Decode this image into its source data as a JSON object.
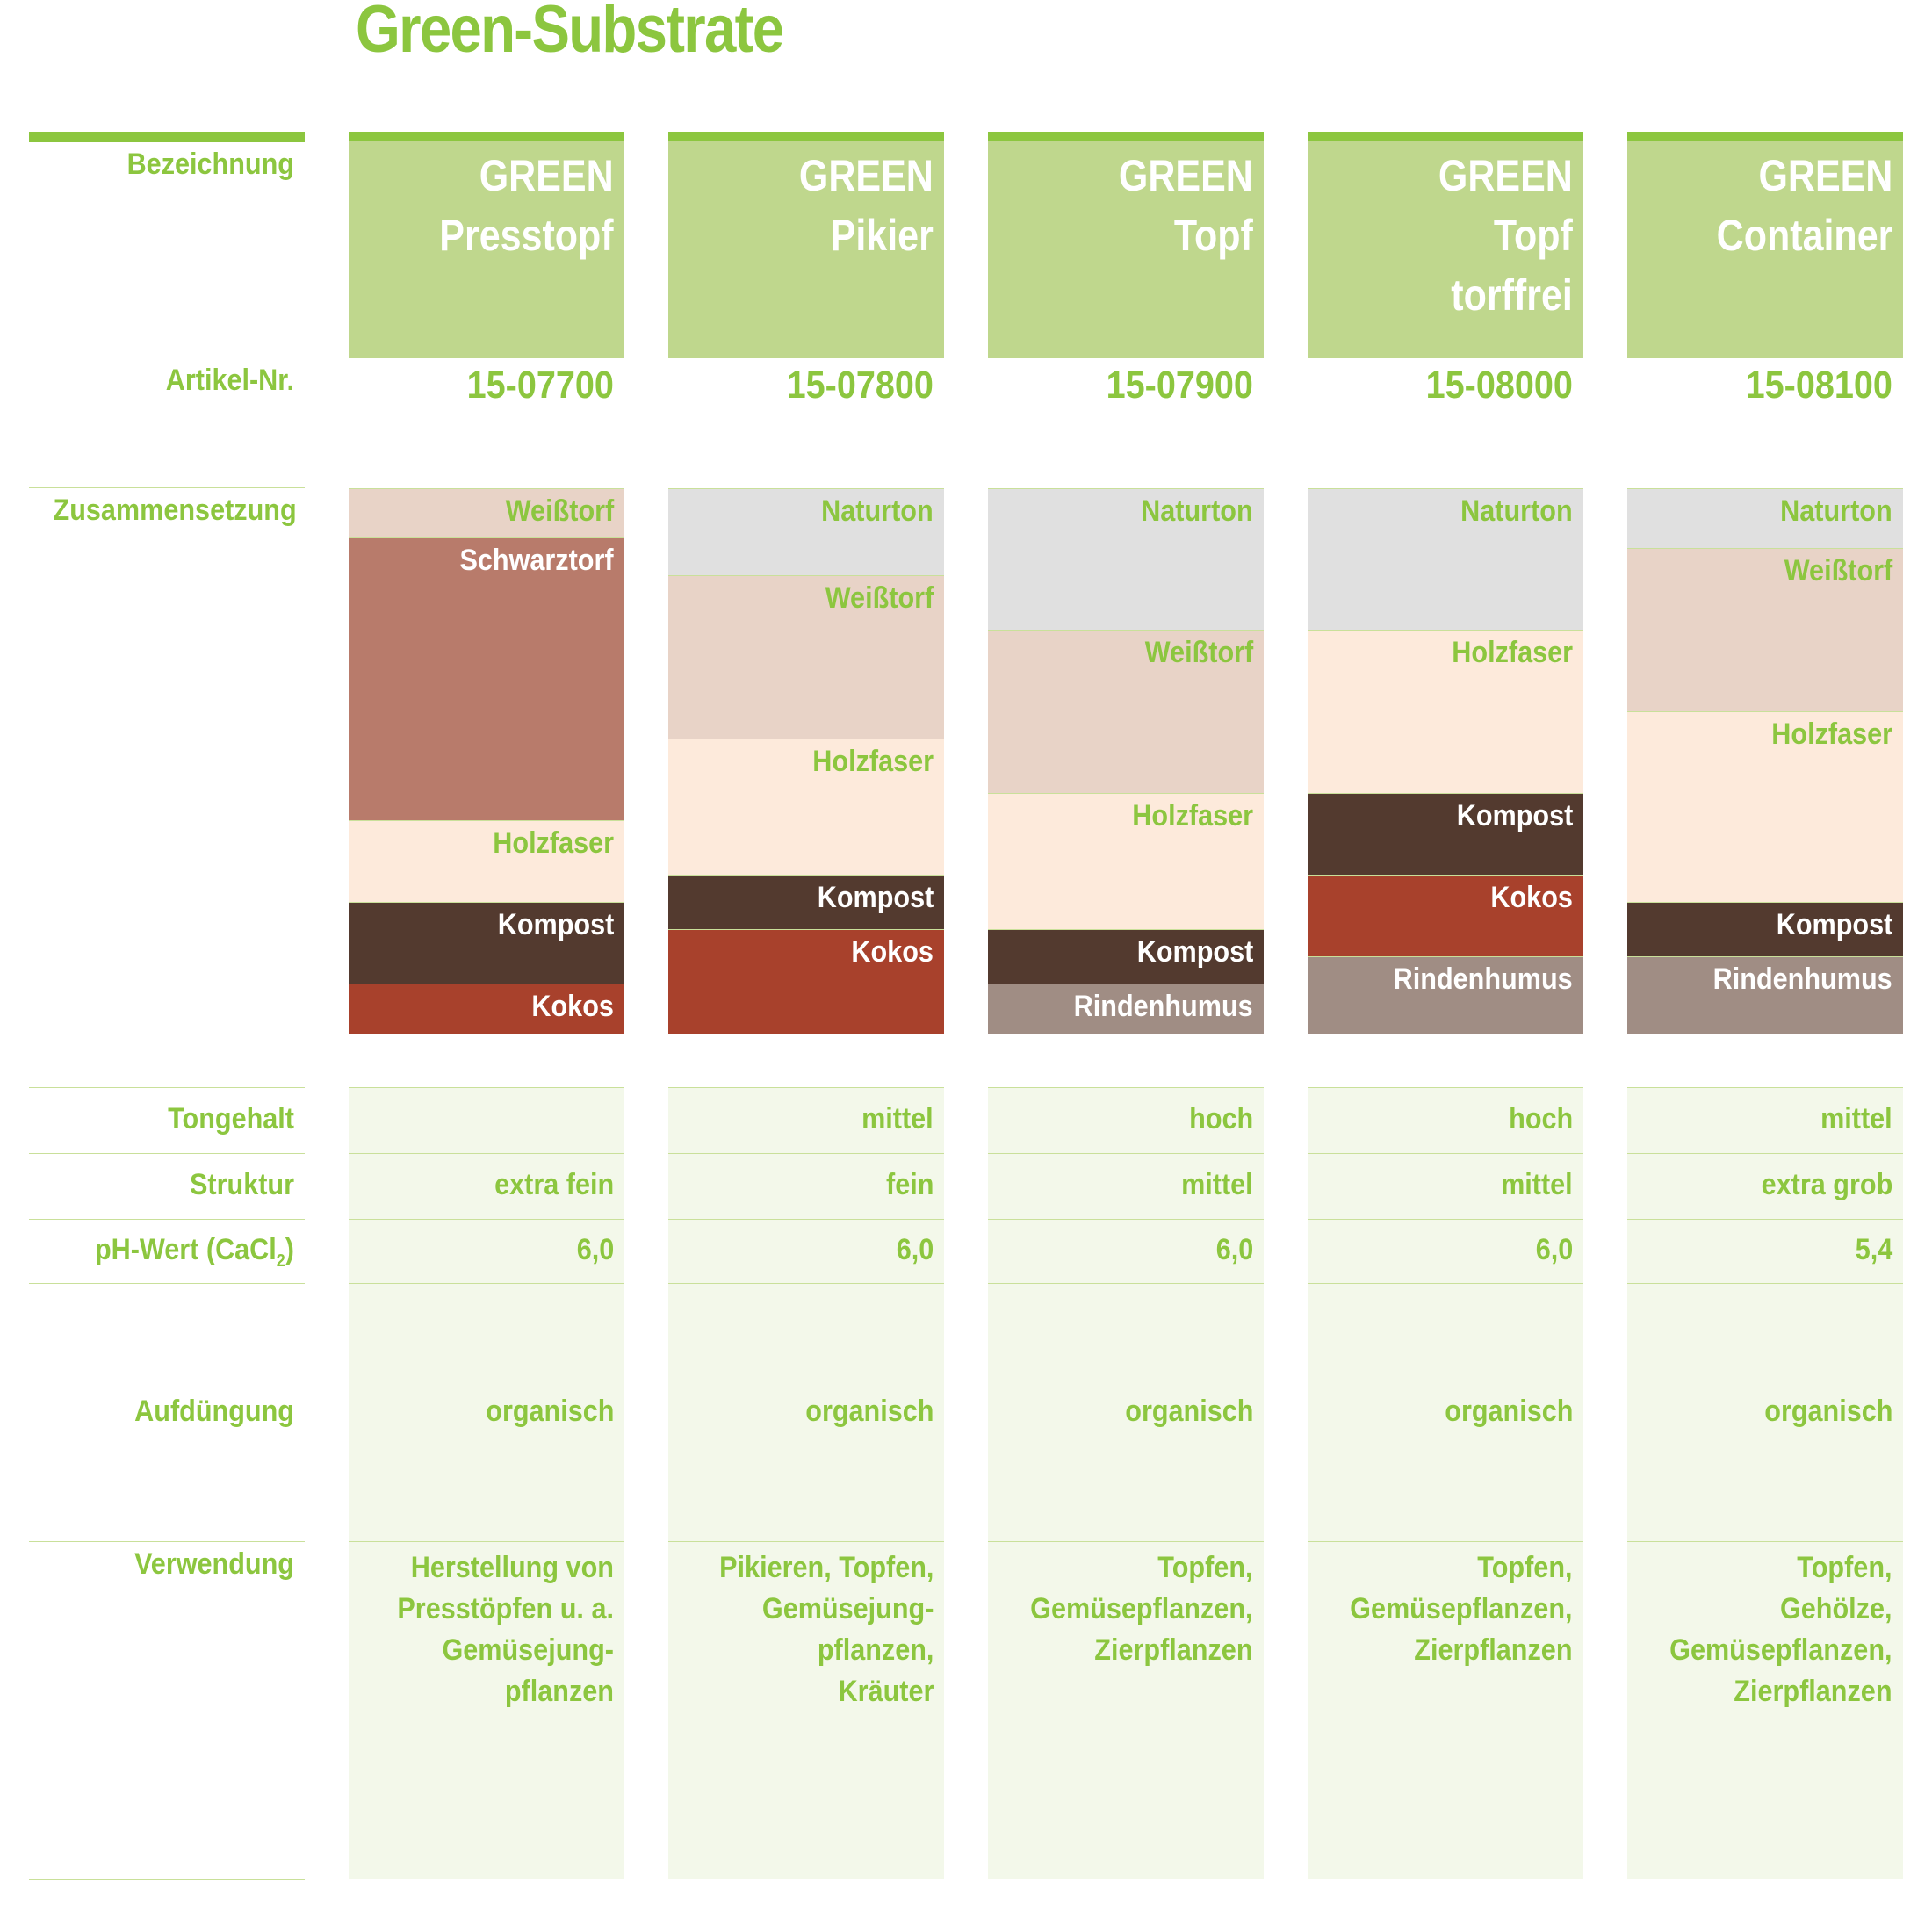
{
  "title": "Green-Substrate",
  "colors": {
    "green": "#8cc63f",
    "header_bg": "#bfd78d",
    "column_bg": "#f3f8ea",
    "line": "#c9e09a"
  },
  "row_labels": {
    "bezeichnung": "Bezeichnung",
    "artikel": "Artikel-Nr.",
    "zusammensetzung": "Zusammensetzung",
    "tongehalt": "Tongehalt",
    "struktur": "Struktur",
    "ph_prefix": "pH-Wert (CaCl",
    "ph_sub": "2",
    "ph_suffix": ")",
    "aufduengung": "Aufdüngung",
    "verwendung": "Verwendung"
  },
  "products": [
    {
      "name": [
        "GREEN",
        "Presstopf"
      ],
      "artikel": "15-07700",
      "layers": [
        {
          "label": "Weißtorf",
          "share": 0.09,
          "color": "#e8d3c7",
          "text": "#8cc63f"
        },
        {
          "label": "Schwarztorf",
          "share": 0.52,
          "color": "#b87b6b",
          "text": "#ffffff"
        },
        {
          "label": "Holzfaser",
          "share": 0.15,
          "color": "#fdeadb",
          "text": "#8cc63f"
        },
        {
          "label": "Kompost",
          "share": 0.15,
          "color": "#533a2f",
          "text": "#ffffff"
        },
        {
          "label": "Kokos",
          "share": 0.09,
          "color": "#a8412c",
          "text": "#ffffff"
        }
      ],
      "tongehalt": "",
      "struktur": "extra fein",
      "ph": "6,0",
      "aufduengung": "organisch",
      "verwendung": [
        "Herstellung von",
        "Presstöpfen u. a.",
        "Gemüsejung-",
        "pflanzen"
      ]
    },
    {
      "name": [
        "GREEN",
        "Pikier"
      ],
      "artikel": "15-07800",
      "layers": [
        {
          "label": "Naturton",
          "share": 0.16,
          "color": "#e0e0e0",
          "text": "#8cc63f"
        },
        {
          "label": "Weißtorf",
          "share": 0.3,
          "color": "#e8d3c7",
          "text": "#8cc63f"
        },
        {
          "label": "Holzfaser",
          "share": 0.25,
          "color": "#fdeadb",
          "text": "#8cc63f"
        },
        {
          "label": "Kompost",
          "share": 0.1,
          "color": "#533a2f",
          "text": "#ffffff"
        },
        {
          "label": "Kokos",
          "share": 0.19,
          "color": "#a8412c",
          "text": "#ffffff"
        }
      ],
      "tongehalt": "mittel",
      "struktur": "fein",
      "ph": "6,0",
      "aufduengung": "organisch",
      "verwendung": [
        "Pikieren, Topfen,",
        "Gemüsejung-",
        "pflanzen,",
        "Kräuter"
      ]
    },
    {
      "name": [
        "GREEN",
        "Topf"
      ],
      "artikel": "15-07900",
      "layers": [
        {
          "label": "Naturton",
          "share": 0.26,
          "color": "#e0e0e0",
          "text": "#8cc63f"
        },
        {
          "label": "Weißtorf",
          "share": 0.3,
          "color": "#e8d3c7",
          "text": "#8cc63f"
        },
        {
          "label": "Holzfaser",
          "share": 0.25,
          "color": "#fdeadb",
          "text": "#8cc63f"
        },
        {
          "label": "Kompost",
          "share": 0.1,
          "color": "#533a2f",
          "text": "#ffffff"
        },
        {
          "label": "Rindenhumus",
          "share": 0.09,
          "color": "#a08d84",
          "text": "#ffffff"
        }
      ],
      "tongehalt": "hoch",
      "struktur": "mittel",
      "ph": "6,0",
      "aufduengung": "organisch",
      "verwendung": [
        "Topfen,",
        "Gemüsepflanzen,",
        "Zierpflanzen"
      ]
    },
    {
      "name": [
        "GREEN",
        "Topf",
        "torffrei"
      ],
      "artikel": "15-08000",
      "layers": [
        {
          "label": "Naturton",
          "share": 0.26,
          "color": "#e0e0e0",
          "text": "#8cc63f"
        },
        {
          "label": "Holzfaser",
          "share": 0.3,
          "color": "#fdeadb",
          "text": "#8cc63f"
        },
        {
          "label": "Kompost",
          "share": 0.15,
          "color": "#533a2f",
          "text": "#ffffff"
        },
        {
          "label": "Kokos",
          "share": 0.15,
          "color": "#a8412c",
          "text": "#ffffff"
        },
        {
          "label": "Rindenhumus",
          "share": 0.14,
          "color": "#a08d84",
          "text": "#ffffff"
        }
      ],
      "tongehalt": "hoch",
      "struktur": "mittel",
      "ph": "6,0",
      "aufduengung": "organisch",
      "verwendung": [
        "Topfen,",
        "Gemüsepflanzen,",
        "Zierpflanzen"
      ]
    },
    {
      "name": [
        "GREEN",
        "Container"
      ],
      "artikel": "15-08100",
      "layers": [
        {
          "label": "Naturton",
          "share": 0.11,
          "color": "#e0e0e0",
          "text": "#8cc63f"
        },
        {
          "label": "Weißtorf",
          "share": 0.3,
          "color": "#e8d3c7",
          "text": "#8cc63f"
        },
        {
          "label": "Holzfaser",
          "share": 0.35,
          "color": "#fdeadb",
          "text": "#8cc63f"
        },
        {
          "label": "Kompost",
          "share": 0.1,
          "color": "#533a2f",
          "text": "#ffffff"
        },
        {
          "label": "Rindenhumus",
          "share": 0.14,
          "color": "#a08d84",
          "text": "#ffffff"
        }
      ],
      "tongehalt": "mittel",
      "struktur": "extra grob",
      "ph": "5,4",
      "aufduengung": "organisch",
      "verwendung": [
        "Topfen,",
        "Gehölze,",
        "Gemüsepflanzen,",
        "Zierpflanzen"
      ]
    }
  ]
}
